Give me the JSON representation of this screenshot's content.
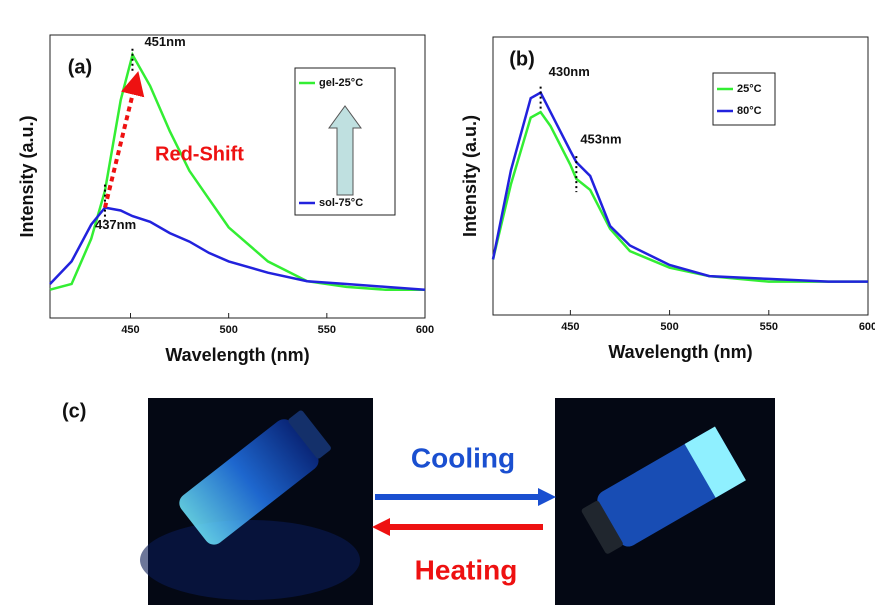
{
  "chart_data": [
    {
      "type": "line",
      "panel": "(a)",
      "xlabel": "Wavelength (nm)",
      "ylabel": "Intensity (a.u.)",
      "x": [
        409,
        420,
        430,
        437,
        445,
        451,
        460,
        470,
        480,
        490,
        500,
        520,
        540,
        560,
        580,
        600
      ],
      "series": [
        {
          "name": "gel-25°C",
          "color": "#33ee33",
          "values": [
            0.1,
            0.12,
            0.28,
            0.45,
            0.77,
            0.93,
            0.82,
            0.66,
            0.52,
            0.42,
            0.32,
            0.2,
            0.13,
            0.11,
            0.1,
            0.1
          ]
        },
        {
          "name": "sol-75°C",
          "color": "#2222dd",
          "values": [
            0.12,
            0.2,
            0.33,
            0.39,
            0.38,
            0.36,
            0.34,
            0.3,
            0.27,
            0.23,
            0.2,
            0.16,
            0.13,
            0.12,
            0.11,
            0.1
          ]
        }
      ],
      "xlim": [
        409,
        600
      ],
      "xticks": [
        450,
        500,
        550,
        600
      ],
      "ylim": [
        0,
        1
      ],
      "annotations": [
        "451nm",
        "437nm",
        "Red-Shift"
      ],
      "legend": "upper right"
    },
    {
      "type": "line",
      "panel": "(b)",
      "xlabel": "Wavelength (nm)",
      "ylabel": "Intensity (a.u.)",
      "x": [
        411,
        420,
        430,
        435,
        440,
        450,
        453,
        460,
        470,
        480,
        500,
        520,
        550,
        580,
        600
      ],
      "series": [
        {
          "name": "25°C",
          "color": "#33ee33",
          "values": [
            0.2,
            0.47,
            0.71,
            0.73,
            0.68,
            0.54,
            0.49,
            0.45,
            0.31,
            0.23,
            0.17,
            0.14,
            0.12,
            0.12,
            0.12
          ]
        },
        {
          "name": "80°C",
          "color": "#2222dd",
          "values": [
            0.2,
            0.52,
            0.78,
            0.8,
            0.73,
            0.59,
            0.55,
            0.5,
            0.32,
            0.25,
            0.18,
            0.14,
            0.13,
            0.12,
            0.12
          ]
        }
      ],
      "xlim": [
        411,
        600
      ],
      "xticks": [
        450,
        500,
        550,
        600
      ],
      "ylim": [
        0,
        1
      ],
      "annotations": [
        "430nm",
        "453nm"
      ],
      "legend": "upper right"
    }
  ],
  "panel_c": {
    "label": "(c)",
    "top_arrow": "Cooling",
    "bottom_arrow": "Heating"
  }
}
